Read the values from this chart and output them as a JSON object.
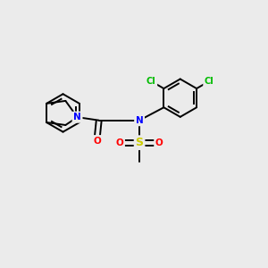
{
  "background_color": "#ebebeb",
  "atom_colors": {
    "C": "#000000",
    "N": "#0000ff",
    "O": "#ff0000",
    "S": "#cccc00",
    "Cl": "#00bb00",
    "H": "#000000"
  },
  "bond_color": "#000000",
  "bond_width": 1.4,
  "font_size_atoms": 7.5,
  "xlim": [
    0,
    10
  ],
  "ylim": [
    0,
    10
  ]
}
